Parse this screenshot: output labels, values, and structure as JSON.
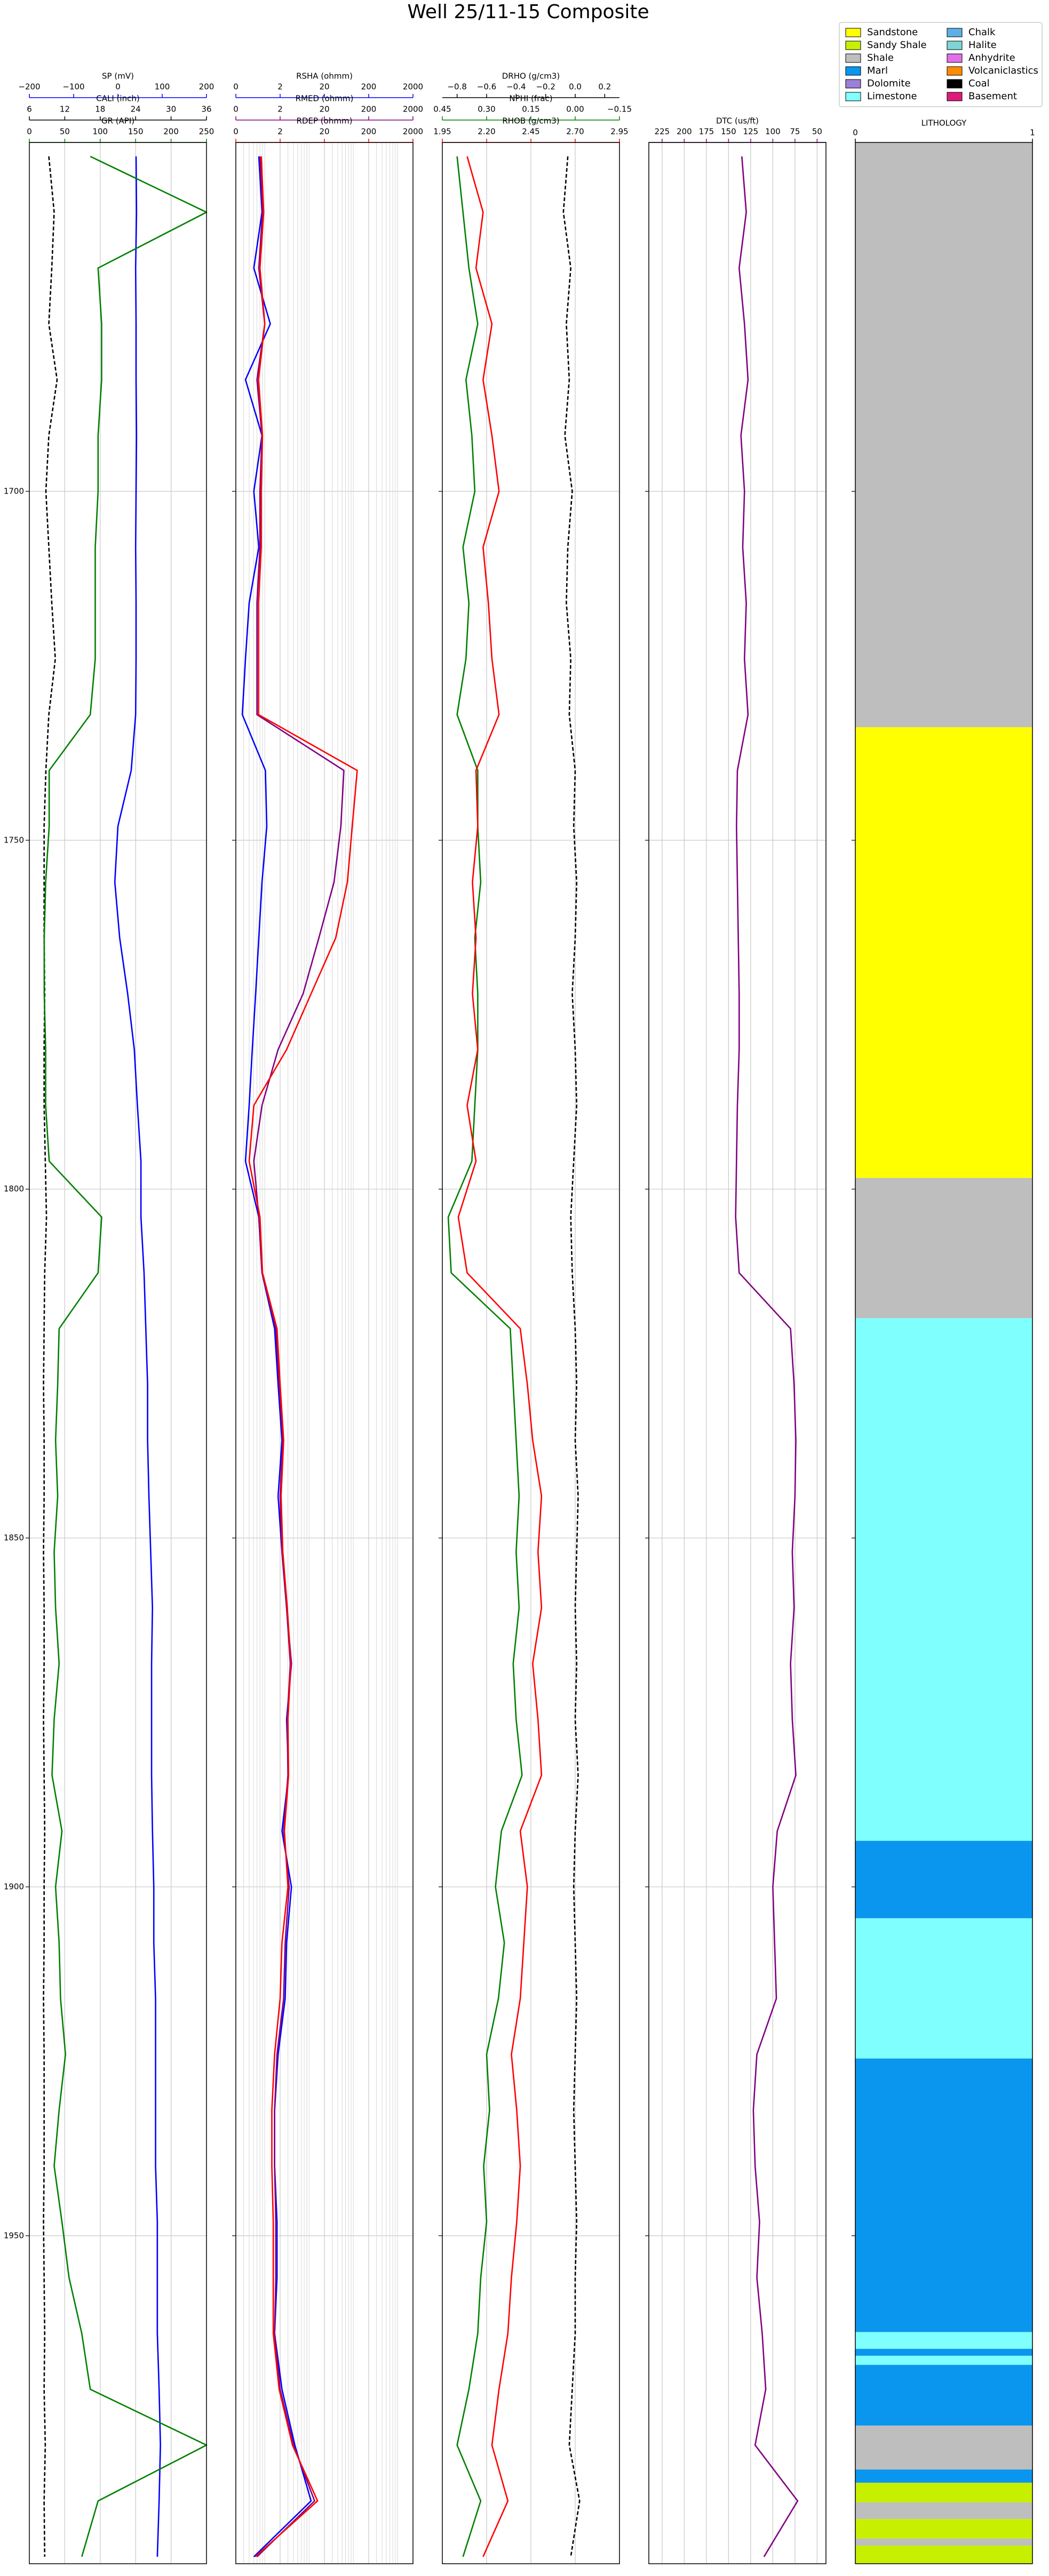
{
  "chart_data": {
    "type": "well_log",
    "title": "Well 25/11-15 Composite",
    "x": [
      1652,
      1660,
      1668,
      1676,
      1684,
      1692,
      1700,
      1708,
      1716,
      1724,
      1732,
      1740,
      1748,
      1756,
      1764,
      1772,
      1780,
      1788,
      1796,
      1804,
      1812,
      1820,
      1828,
      1836,
      1844,
      1852,
      1860,
      1868,
      1876,
      1884,
      1892,
      1900,
      1908,
      1916,
      1924,
      1932,
      1940,
      1948,
      1956,
      1964,
      1972,
      1980,
      1988,
      1996
    ],
    "ylim": [
      1650,
      1997
    ],
    "yticks": [
      1700,
      1750,
      1800,
      1850,
      1900,
      1950
    ],
    "invert_y": true,
    "grid": true,
    "tracks": [
      {
        "type": "log",
        "curves": [
          {
            "name": "SP (mV)",
            "color": "#0000ff",
            "style": "solid",
            "scale": "linear",
            "xlim": [
              -200,
              200
            ],
            "xticks": [
              {
                "value": -200,
                "label": "−200"
              },
              {
                "value": -100,
                "label": "−100"
              },
              0,
              100,
              200
            ],
            "values": [
              41,
              42,
              40,
              41,
              41,
              42,
              41,
              40,
              41,
              41,
              40,
              30,
              0,
              -7,
              4,
              22,
              37,
              44,
              52,
              52,
              59,
              63,
              67,
              67,
              70,
              74,
              78,
              76,
              76,
              76,
              78,
              81,
              81,
              85,
              85,
              85,
              85,
              89,
              89,
              89,
              93,
              96,
              93,
              89
            ]
          },
          {
            "name": "CALI (inch)",
            "color": "#000000",
            "style": "dashed",
            "scale": "linear",
            "xlim": [
              6,
              36
            ],
            "xticks": [
              6,
              12,
              18,
              24,
              30,
              36
            ],
            "values": [
              9.3,
              10.2,
              9.8,
              9.3,
              10.7,
              9.3,
              8.8,
              9.3,
              9.8,
              10.4,
              9.3,
              8.8,
              8.5,
              8.5,
              8.5,
              8.6,
              8.5,
              8.5,
              8.7,
              8.9,
              8.6,
              8.5,
              8.4,
              8.5,
              8.5,
              8.4,
              8.5,
              8.5,
              8.4,
              8.5,
              8.6,
              8.5,
              8.5,
              8.4,
              8.5,
              8.5,
              8.5,
              8.4,
              8.5,
              8.6,
              8.5,
              8.7,
              8.5,
              8.6
            ]
          },
          {
            "name": "GR (API)",
            "color": "#008000",
            "style": "solid",
            "scale": "linear",
            "xlim": [
              0,
              250
            ],
            "xticks": [
              0,
              50,
              100,
              150,
              200,
              250
            ],
            "values": [
              86,
              250,
              97,
              102,
              102,
              97,
              97,
              93,
              93,
              93,
              86,
              28,
              28,
              23,
              21,
              21,
              23,
              23,
              28,
              102,
              97,
              42,
              40,
              37,
              40,
              35,
              37,
              42,
              35,
              32,
              46,
              37,
              42,
              44,
              51,
              42,
              35,
              46,
              56,
              74,
              86,
              250,
              97,
              74
            ]
          }
        ]
      },
      {
        "type": "log",
        "curves": [
          {
            "name": "RSHA (ohmm)",
            "color": "#0000ff",
            "style": "solid",
            "scale": "log",
            "xlim": [
              0.2,
              2000
            ],
            "xticks": [
              {
                "value": 0.2,
                "label": "0"
              },
              2,
              20,
              200,
              2000
            ],
            "values": [
              0.66,
              0.78,
              0.51,
              1.2,
              0.33,
              0.78,
              0.51,
              0.66,
              0.4,
              0.33,
              0.28,
              0.93,
              1.0,
              0.78,
              0.66,
              0.56,
              0.47,
              0.4,
              0.33,
              0.66,
              0.78,
              1.5,
              1.8,
              2.2,
              1.8,
              2.2,
              2.8,
              3.6,
              2.8,
              3.1,
              2.2,
              3.6,
              2.8,
              2.6,
              1.8,
              1.5,
              1.5,
              1.7,
              1.7,
              1.5,
              2.2,
              4.3,
              10,
              0.51
            ]
          },
          {
            "name": "RMED (ohmm)",
            "color": "#800080",
            "style": "solid",
            "scale": "log",
            "xlim": [
              0.2,
              2000
            ],
            "xticks": [
              {
                "value": 0.2,
                "label": "0"
              },
              2,
              20,
              200,
              2000
            ],
            "values": [
              0.7,
              0.8,
              0.66,
              0.9,
              0.6,
              0.78,
              0.7,
              0.7,
              0.6,
              0.6,
              0.6,
              55,
              47,
              33,
              15,
              6.6,
              1.8,
              0.78,
              0.51,
              0.66,
              0.78,
              1.6,
              1.9,
              2.3,
              2.0,
              2.2,
              2.8,
              3.4,
              2.9,
              3.0,
              2.4,
              3.2,
              2.6,
              2.4,
              1.7,
              1.5,
              1.5,
              1.6,
              1.6,
              1.5,
              2.0,
              4.0,
              12,
              0.6
            ]
          },
          {
            "name": "RDEP (ohmm)",
            "color": "#ff0000",
            "style": "solid",
            "scale": "log",
            "xlim": [
              0.2,
              2000
            ],
            "xticks": [
              {
                "value": 0.2,
                "label": "0"
              },
              2,
              20,
              200,
              2000
            ],
            "values": [
              0.75,
              0.85,
              0.7,
              0.9,
              0.65,
              0.8,
              0.75,
              0.75,
              0.65,
              0.65,
              0.65,
              110,
              85,
              66,
              36,
              10,
              2.8,
              0.51,
              0.4,
              0.7,
              0.8,
              1.7,
              2.0,
              2.4,
              2.1,
              2.3,
              2.9,
              3.5,
              3.0,
              3.1,
              2.5,
              3.0,
              2.2,
              2.0,
              1.5,
              1.3,
              1.3,
              1.4,
              1.4,
              1.4,
              1.9,
              3.8,
              14,
              0.55
            ]
          }
        ]
      },
      {
        "type": "log",
        "curves": [
          {
            "name": "DRHO (g/cm3)",
            "color": "#000000",
            "style": "dashed",
            "scale": "linear",
            "xlim": [
              -0.9,
              0.3
            ],
            "xticks": [
              {
                "value": -0.8,
                "label": "−0.8"
              },
              {
                "value": -0.6,
                "label": "−0.6"
              },
              {
                "value": -0.4,
                "label": "−0.4"
              },
              {
                "value": -0.2,
                "label": "−0.2"
              },
              {
                "value": 0,
                "label": "0.0"
              },
              0.2
            ],
            "values": [
              -0.05,
              -0.08,
              -0.03,
              -0.06,
              -0.04,
              -0.07,
              -0.02,
              -0.05,
              -0.06,
              -0.03,
              -0.04,
              0.0,
              -0.01,
              0.01,
              0.0,
              -0.02,
              0.0,
              0.01,
              -0.01,
              -0.03,
              -0.02,
              0.0,
              0.01,
              0.0,
              0.02,
              0.01,
              0.0,
              0.01,
              0.0,
              0.02,
              0.0,
              -0.01,
              0.0,
              0.01,
              0.0,
              -0.01,
              0.0,
              0.01,
              0.0,
              0.0,
              -0.02,
              -0.04,
              0.03,
              -0.03
            ]
          },
          {
            "name": "NPHI (frac)",
            "color": "#008000",
            "style": "solid",
            "scale": "linear",
            "xlim": [
              0.45,
              -0.15
            ],
            "xticks": [
              0.45,
              {
                "value": 0.3,
                "label": "0.30"
              },
              0.15,
              {
                "value": 0,
                "label": "0.00"
              },
              {
                "value": -0.15,
                "label": "−0.15"
              }
            ],
            "values": [
              0.4,
              0.38,
              0.36,
              0.33,
              0.37,
              0.35,
              0.34,
              0.38,
              0.36,
              0.37,
              0.4,
              0.33,
              0.33,
              0.32,
              0.34,
              0.33,
              0.33,
              0.34,
              0.35,
              0.43,
              0.42,
              0.22,
              0.21,
              0.2,
              0.19,
              0.2,
              0.19,
              0.21,
              0.2,
              0.18,
              0.25,
              0.27,
              0.24,
              0.26,
              0.3,
              0.29,
              0.31,
              0.3,
              0.32,
              0.33,
              0.36,
              0.4,
              0.32,
              0.38
            ]
          },
          {
            "name": "RHOB (g/cm3)",
            "color": "#ff0000",
            "style": "solid",
            "scale": "linear",
            "xlim": [
              1.95,
              2.95
            ],
            "xticks": [
              1.95,
              {
                "value": 2.2,
                "label": "2.20"
              },
              2.45,
              {
                "value": 2.7,
                "label": "2.70"
              },
              2.95
            ],
            "values": [
              2.09,
              2.18,
              2.14,
              2.23,
              2.18,
              2.23,
              2.27,
              2.18,
              2.21,
              2.23,
              2.27,
              2.14,
              2.15,
              2.12,
              2.14,
              2.12,
              2.15,
              2.09,
              2.14,
              2.04,
              2.09,
              2.39,
              2.43,
              2.46,
              2.51,
              2.49,
              2.51,
              2.46,
              2.49,
              2.51,
              2.39,
              2.43,
              2.41,
              2.39,
              2.34,
              2.37,
              2.39,
              2.37,
              2.34,
              2.32,
              2.27,
              2.23,
              2.32,
              2.18
            ]
          }
        ]
      },
      {
        "type": "log",
        "curves": [
          {
            "name": "DTC (us/ft)",
            "color": "#800080",
            "style": "solid",
            "scale": "linear",
            "xlim": [
              240,
              40
            ],
            "xticks": [
              225,
              200,
              175,
              150,
              125,
              100,
              75,
              50
            ],
            "values": [
              135,
              130,
              138,
              132,
              128,
              136,
              132,
              134,
              130,
              132,
              128,
              140,
              141,
              140,
              139,
              138,
              138,
              140,
              141,
              142,
              138,
              80,
              76,
              74,
              75,
              78,
              76,
              80,
              78,
              74,
              95,
              100,
              98,
              96,
              118,
              122,
              120,
              115,
              118,
              112,
              108,
              120,
              72,
              110
            ]
          }
        ]
      },
      {
        "type": "lithology",
        "name": "LITHOLOGY",
        "xlim": [
          0,
          1
        ],
        "xticks": [
          0,
          1
        ],
        "intervals": [
          {
            "top": 1650,
            "base": 1733.8,
            "lithology": "Shale"
          },
          {
            "top": 1733.8,
            "base": 1798.4,
            "lithology": "Sandstone"
          },
          {
            "top": 1798.4,
            "base": 1818.5,
            "lithology": "Shale"
          },
          {
            "top": 1818.5,
            "base": 1893.4,
            "lithology": "Limestone"
          },
          {
            "top": 1893.4,
            "base": 1904.5,
            "lithology": "Marl"
          },
          {
            "top": 1904.5,
            "base": 1924.6,
            "lithology": "Limestone"
          },
          {
            "top": 1924.6,
            "base": 1963.8,
            "lithology": "Marl"
          },
          {
            "top": 1963.8,
            "base": 1966.2,
            "lithology": "Limestone"
          },
          {
            "top": 1966.2,
            "base": 1967.2,
            "lithology": "Marl"
          },
          {
            "top": 1967.2,
            "base": 1968.5,
            "lithology": "Limestone"
          },
          {
            "top": 1968.5,
            "base": 1977.2,
            "lithology": "Marl"
          },
          {
            "top": 1977.2,
            "base": 1983.5,
            "lithology": "Shale"
          },
          {
            "top": 1983.5,
            "base": 1985.4,
            "lithology": "Marl"
          },
          {
            "top": 1985.4,
            "base": 1988.2,
            "lithology": "Sandy Shale"
          },
          {
            "top": 1988.2,
            "base": 1990.6,
            "lithology": "Shale"
          },
          {
            "top": 1990.6,
            "base": 1993.4,
            "lithology": "Sandy Shale"
          },
          {
            "top": 1993.4,
            "base": 1994.4,
            "lithology": "Shale"
          },
          {
            "top": 1994.4,
            "base": 1997,
            "lithology": "Sandy Shale"
          }
        ]
      }
    ],
    "legend": {
      "position": "upper right",
      "columns": 2,
      "entries": [
        {
          "name": "Sandstone",
          "color": "#ffff00"
        },
        {
          "name": "Sandy Shale",
          "color": "#c6f000"
        },
        {
          "name": "Shale",
          "color": "#bebebe"
        },
        {
          "name": "Marl",
          "color": "#0a96ee"
        },
        {
          "name": "Dolomite",
          "color": "#9c7fd6"
        },
        {
          "name": "Limestone",
          "color": "#80ffff"
        },
        {
          "name": "Chalk",
          "color": "#5cb0e6"
        },
        {
          "name": "Halite",
          "color": "#7fd4d4"
        },
        {
          "name": "Anhydrite",
          "color": "#e070e8"
        },
        {
          "name": "Volcaniclastics",
          "color": "#ff8c00"
        },
        {
          "name": "Coal",
          "color": "#000000"
        },
        {
          "name": "Basement",
          "color": "#e0197a"
        }
      ]
    }
  }
}
